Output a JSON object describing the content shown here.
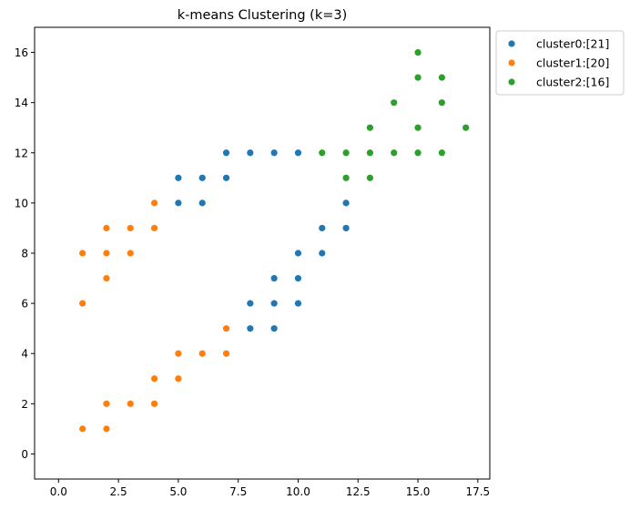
{
  "chart_data": {
    "type": "scatter",
    "title": "k-means Clustering (k=3)",
    "xlabel": "",
    "ylabel": "",
    "xlim": [
      -1,
      18
    ],
    "ylim": [
      -1,
      17
    ],
    "xticks": [
      0.0,
      2.5,
      5.0,
      7.5,
      10.0,
      12.5,
      15.0,
      17.5
    ],
    "xtick_labels": [
      "0.0",
      "2.5",
      "5.0",
      "7.5",
      "10.0",
      "12.5",
      "15.0",
      "17.5"
    ],
    "yticks": [
      0,
      2,
      4,
      6,
      8,
      10,
      12,
      14,
      16
    ],
    "ytick_labels": [
      "0",
      "2",
      "4",
      "6",
      "8",
      "10",
      "12",
      "14",
      "16"
    ],
    "grid": false,
    "legend_position": "outside-top-right",
    "series": [
      {
        "name": "cluster0:[21]",
        "color": "#1f77b4",
        "points": [
          [
            5,
            10
          ],
          [
            5,
            11
          ],
          [
            6,
            10
          ],
          [
            6,
            11
          ],
          [
            7,
            11
          ],
          [
            7,
            12
          ],
          [
            8,
            12
          ],
          [
            9,
            12
          ],
          [
            10,
            12
          ],
          [
            8,
            5
          ],
          [
            8,
            6
          ],
          [
            9,
            5
          ],
          [
            9,
            6
          ],
          [
            9,
            7
          ],
          [
            10,
            6
          ],
          [
            10,
            7
          ],
          [
            10,
            8
          ],
          [
            11,
            8
          ],
          [
            11,
            9
          ],
          [
            12,
            9
          ],
          [
            12,
            10
          ]
        ]
      },
      {
        "name": "cluster1:[20]",
        "color": "#ff7f0e",
        "points": [
          [
            1,
            1
          ],
          [
            2,
            1
          ],
          [
            2,
            2
          ],
          [
            3,
            2
          ],
          [
            4,
            2
          ],
          [
            4,
            3
          ],
          [
            5,
            3
          ],
          [
            5,
            4
          ],
          [
            6,
            4
          ],
          [
            7,
            4
          ],
          [
            7,
            5
          ],
          [
            1,
            6
          ],
          [
            1,
            8
          ],
          [
            2,
            7
          ],
          [
            2,
            8
          ],
          [
            2,
            9
          ],
          [
            3,
            8
          ],
          [
            3,
            9
          ],
          [
            4,
            9
          ],
          [
            4,
            10
          ]
        ]
      },
      {
        "name": "cluster2:[16]",
        "color": "#2ca02c",
        "points": [
          [
            11,
            12
          ],
          [
            12,
            11
          ],
          [
            12,
            12
          ],
          [
            13,
            11
          ],
          [
            13,
            12
          ],
          [
            13,
            13
          ],
          [
            14,
            12
          ],
          [
            14,
            14
          ],
          [
            15,
            12
          ],
          [
            15,
            13
          ],
          [
            15,
            15
          ],
          [
            15,
            16
          ],
          [
            16,
            12
          ],
          [
            16,
            14
          ],
          [
            16,
            15
          ],
          [
            17,
            13
          ]
        ]
      }
    ]
  }
}
